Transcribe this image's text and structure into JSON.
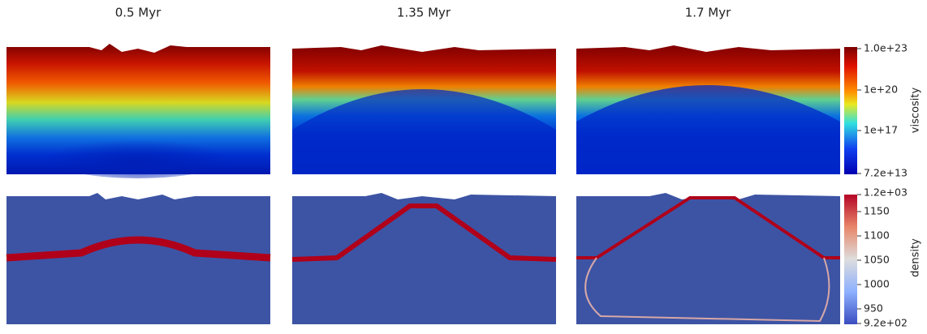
{
  "panels": [
    {
      "title": "0.5 Myr"
    },
    {
      "title": "1.35 Myr"
    },
    {
      "title": "1.7 Myr"
    }
  ],
  "colorbars": [
    {
      "label": "viscosity",
      "ticks": [
        "1.0e+23",
        "1e+20",
        "1e+17",
        "7.2e+13"
      ]
    },
    {
      "label": "density",
      "ticks": [
        "1.2e+03",
        "1150",
        "1100",
        "1050",
        "1000",
        "950",
        "9.2e+02"
      ]
    }
  ]
}
